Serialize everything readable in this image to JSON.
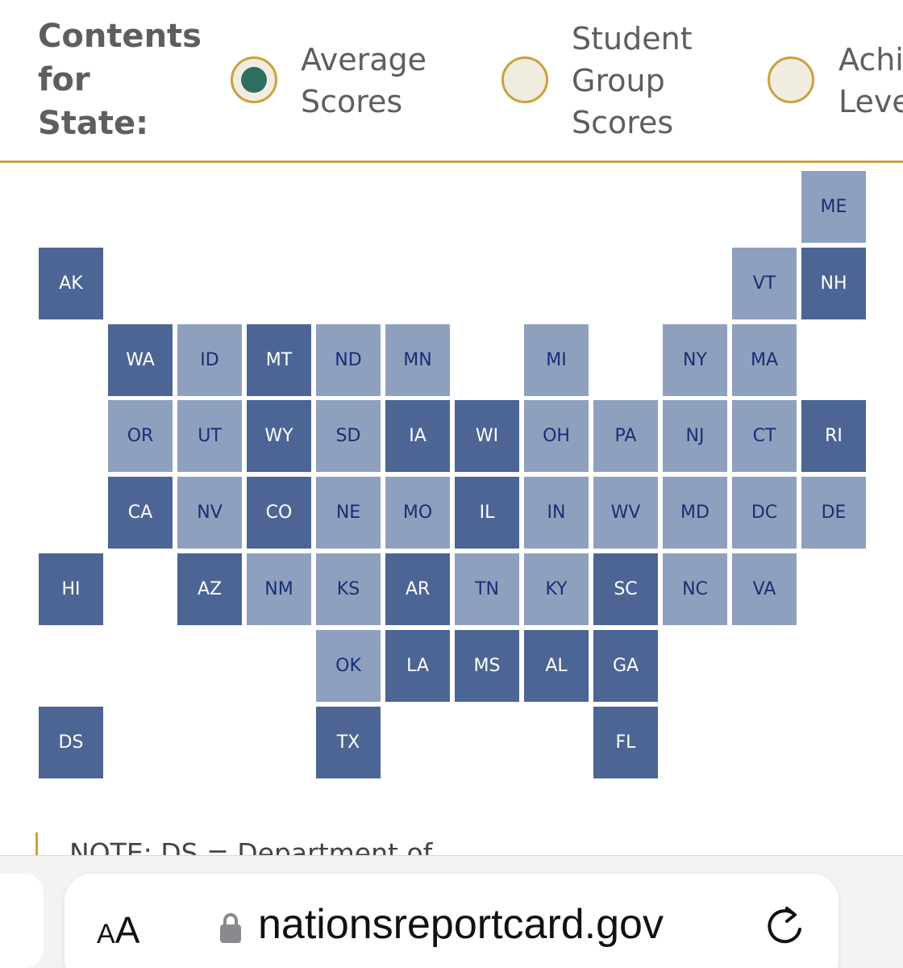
{
  "header": {
    "label": "Contents\nfor\nState:",
    "options": [
      {
        "label": "Average\nScores",
        "selected": true
      },
      {
        "label": "Student\nGroup\nScores",
        "selected": false
      },
      {
        "label": "Achi\nLeve",
        "selected": false
      }
    ]
  },
  "colors": {
    "dark_tile": "#4d6595",
    "light_tile": "#8fa0bf",
    "accent_gold": "#c8a23a",
    "radio_selected": "#2e6e60"
  },
  "map": {
    "tiles": [
      {
        "abbr": "ME",
        "shade": "light"
      },
      {
        "abbr": "AK",
        "shade": "dark"
      },
      {
        "abbr": "VT",
        "shade": "light"
      },
      {
        "abbr": "NH",
        "shade": "dark"
      },
      {
        "abbr": "WA",
        "shade": "dark"
      },
      {
        "abbr": "ID",
        "shade": "light"
      },
      {
        "abbr": "MT",
        "shade": "dark"
      },
      {
        "abbr": "ND",
        "shade": "light"
      },
      {
        "abbr": "MN",
        "shade": "light"
      },
      {
        "abbr": "MI",
        "shade": "light"
      },
      {
        "abbr": "NY",
        "shade": "light"
      },
      {
        "abbr": "MA",
        "shade": "light"
      },
      {
        "abbr": "OR",
        "shade": "light"
      },
      {
        "abbr": "UT",
        "shade": "light"
      },
      {
        "abbr": "WY",
        "shade": "dark"
      },
      {
        "abbr": "SD",
        "shade": "light"
      },
      {
        "abbr": "IA",
        "shade": "dark"
      },
      {
        "abbr": "WI",
        "shade": "dark"
      },
      {
        "abbr": "OH",
        "shade": "light"
      },
      {
        "abbr": "PA",
        "shade": "light"
      },
      {
        "abbr": "NJ",
        "shade": "light"
      },
      {
        "abbr": "CT",
        "shade": "light"
      },
      {
        "abbr": "RI",
        "shade": "dark"
      },
      {
        "abbr": "CA",
        "shade": "dark"
      },
      {
        "abbr": "NV",
        "shade": "light"
      },
      {
        "abbr": "CO",
        "shade": "dark"
      },
      {
        "abbr": "NE",
        "shade": "light"
      },
      {
        "abbr": "MO",
        "shade": "light"
      },
      {
        "abbr": "IL",
        "shade": "dark"
      },
      {
        "abbr": "IN",
        "shade": "light"
      },
      {
        "abbr": "WV",
        "shade": "light"
      },
      {
        "abbr": "MD",
        "shade": "light"
      },
      {
        "abbr": "DC",
        "shade": "light"
      },
      {
        "abbr": "DE",
        "shade": "light"
      },
      {
        "abbr": "HI",
        "shade": "dark"
      },
      {
        "abbr": "AZ",
        "shade": "dark"
      },
      {
        "abbr": "NM",
        "shade": "light"
      },
      {
        "abbr": "KS",
        "shade": "light"
      },
      {
        "abbr": "AR",
        "shade": "dark"
      },
      {
        "abbr": "TN",
        "shade": "light"
      },
      {
        "abbr": "KY",
        "shade": "light"
      },
      {
        "abbr": "SC",
        "shade": "dark"
      },
      {
        "abbr": "NC",
        "shade": "light"
      },
      {
        "abbr": "VA",
        "shade": "light"
      },
      {
        "abbr": "OK",
        "shade": "light"
      },
      {
        "abbr": "LA",
        "shade": "dark"
      },
      {
        "abbr": "MS",
        "shade": "dark"
      },
      {
        "abbr": "AL",
        "shade": "dark"
      },
      {
        "abbr": "GA",
        "shade": "dark"
      },
      {
        "abbr": "DS",
        "shade": "dark"
      },
      {
        "abbr": "TX",
        "shade": "dark"
      },
      {
        "abbr": "FL",
        "shade": "dark"
      }
    ]
  },
  "note": "NOTE: DS = Department of",
  "browser": {
    "aa_small": "A",
    "aa_big": "A",
    "url": "nationsreportcard.gov",
    "lock_icon": "lock-icon",
    "reload_icon": "reload-icon"
  }
}
